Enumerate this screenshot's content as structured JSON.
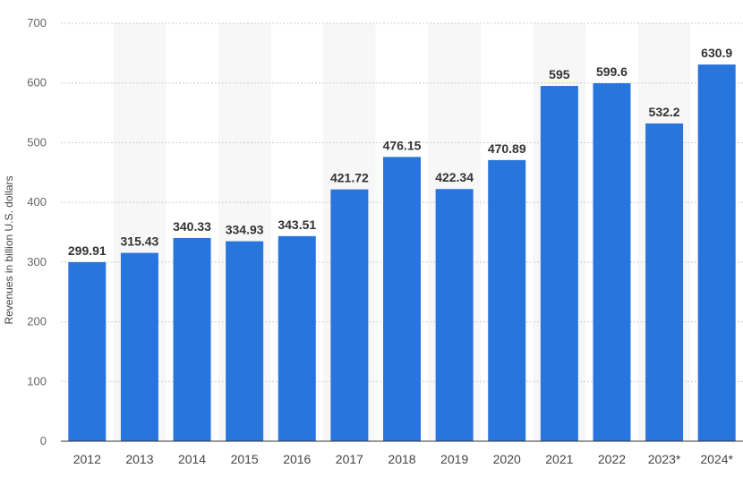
{
  "chart_data": {
    "type": "bar",
    "categories": [
      "2012",
      "2013",
      "2014",
      "2015",
      "2016",
      "2017",
      "2018",
      "2019",
      "2020",
      "2021",
      "2022",
      "2023*",
      "2024*"
    ],
    "values": [
      299.91,
      315.43,
      340.33,
      334.93,
      343.51,
      421.72,
      476.15,
      422.34,
      470.89,
      595,
      599.6,
      532.2,
      630.9
    ],
    "data_labels": [
      "299.91",
      "315.43",
      "340.33",
      "334.93",
      "343.51",
      "421.72",
      "476.15",
      "422.34",
      "470.89",
      "595",
      "599.6",
      "532.2",
      "630.9"
    ],
    "title": "",
    "xlabel": "",
    "ylabel": "Revenues in billion U.S. dollars",
    "ylim": [
      0,
      700
    ],
    "yticks": [
      0,
      100,
      200,
      300,
      400,
      500,
      600,
      700
    ],
    "grid": true,
    "legend": "none",
    "bar_color": "#2875dd",
    "band_color": "#f7f7f7",
    "grid_color": "#cccccc"
  }
}
